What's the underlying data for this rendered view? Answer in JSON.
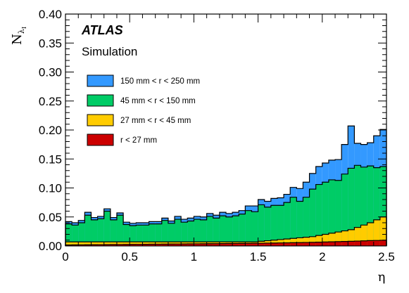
{
  "chart_data": {
    "type": "area",
    "stacked": true,
    "histogram": true,
    "xlabel": "η",
    "ylabel": "N_{λ_I}",
    "xlim": [
      0,
      2.5
    ],
    "ylim": [
      0,
      0.4
    ],
    "x_ticks": [
      "0",
      "0.5",
      "1",
      "1.5",
      "2",
      "2.5"
    ],
    "y_ticks": [
      "0.00",
      "0.05",
      "0.10",
      "0.15",
      "0.20",
      "0.25",
      "0.30",
      "0.35",
      "0.40"
    ],
    "labels": {
      "experiment": "ATLAS",
      "status": "Simulation"
    },
    "legend_position": "top-left",
    "bins": 50,
    "bin_width": 0.05,
    "series": [
      {
        "name": "r < 27 mm",
        "color": "#cc0000",
        "values": [
          0.0017,
          0.0018,
          0.0019,
          0.002,
          0.0021,
          0.0022,
          0.0023,
          0.0024,
          0.0025,
          0.0026,
          0.0027,
          0.0028,
          0.0029,
          0.003,
          0.0031,
          0.0032,
          0.0033,
          0.0034,
          0.0035,
          0.0036,
          0.0037,
          0.0038,
          0.0039,
          0.004,
          0.0041,
          0.0042,
          0.0043,
          0.0044,
          0.0045,
          0.0046,
          0.0048,
          0.0049,
          0.005,
          0.0052,
          0.0054,
          0.0056,
          0.0058,
          0.006,
          0.0062,
          0.0065,
          0.0068,
          0.0071,
          0.0074,
          0.0077,
          0.008,
          0.0084,
          0.0088,
          0.0092,
          0.0095,
          0.0098
        ]
      },
      {
        "name": "27 mm < r < 45 mm",
        "color": "#ffcc00",
        "values": [
          0.0053,
          0.0052,
          0.0051,
          0.005,
          0.0049,
          0.0048,
          0.0047,
          0.0046,
          0.0045,
          0.0044,
          0.0043,
          0.0042,
          0.0041,
          0.004,
          0.0039,
          0.0038,
          0.0037,
          0.0036,
          0.0035,
          0.0034,
          0.0033,
          0.0032,
          0.0031,
          0.003,
          0.0029,
          0.0028,
          0.0027,
          0.0026,
          0.0025,
          0.0024,
          0.0032,
          0.0041,
          0.005,
          0.0058,
          0.0066,
          0.0074,
          0.0082,
          0.009,
          0.0098,
          0.0115,
          0.0132,
          0.0149,
          0.0166,
          0.0183,
          0.02,
          0.0236,
          0.0272,
          0.0308,
          0.0355,
          0.0402
        ]
      },
      {
        "name": "45 mm < r < 150 mm",
        "color": "#00cc66",
        "values": [
          0.031,
          0.029,
          0.033,
          0.046,
          0.038,
          0.04,
          0.053,
          0.038,
          0.046,
          0.03,
          0.028,
          0.029,
          0.029,
          0.031,
          0.031,
          0.037,
          0.032,
          0.039,
          0.034,
          0.036,
          0.039,
          0.038,
          0.044,
          0.041,
          0.045,
          0.043,
          0.045,
          0.048,
          0.054,
          0.052,
          0.063,
          0.058,
          0.06,
          0.059,
          0.063,
          0.071,
          0.063,
          0.069,
          0.082,
          0.088,
          0.09,
          0.092,
          0.089,
          0.098,
          0.106,
          0.107,
          0.1,
          0.098,
          0.09,
          0.087
        ]
      },
      {
        "name": "150 mm < r < 250 mm",
        "color": "#3399ff",
        "values": [
          0.004,
          0.004,
          0.004,
          0.005,
          0.004,
          0.004,
          0.004,
          0.004,
          0.004,
          0.004,
          0.004,
          0.004,
          0.004,
          0.004,
          0.004,
          0.004,
          0.004,
          0.005,
          0.005,
          0.005,
          0.005,
          0.005,
          0.005,
          0.005,
          0.006,
          0.006,
          0.006,
          0.006,
          0.008,
          0.01,
          0.009,
          0.01,
          0.012,
          0.013,
          0.014,
          0.017,
          0.022,
          0.026,
          0.027,
          0.031,
          0.033,
          0.034,
          0.036,
          0.051,
          0.073,
          0.038,
          0.039,
          0.04,
          0.055,
          0.064
        ]
      }
    ]
  }
}
